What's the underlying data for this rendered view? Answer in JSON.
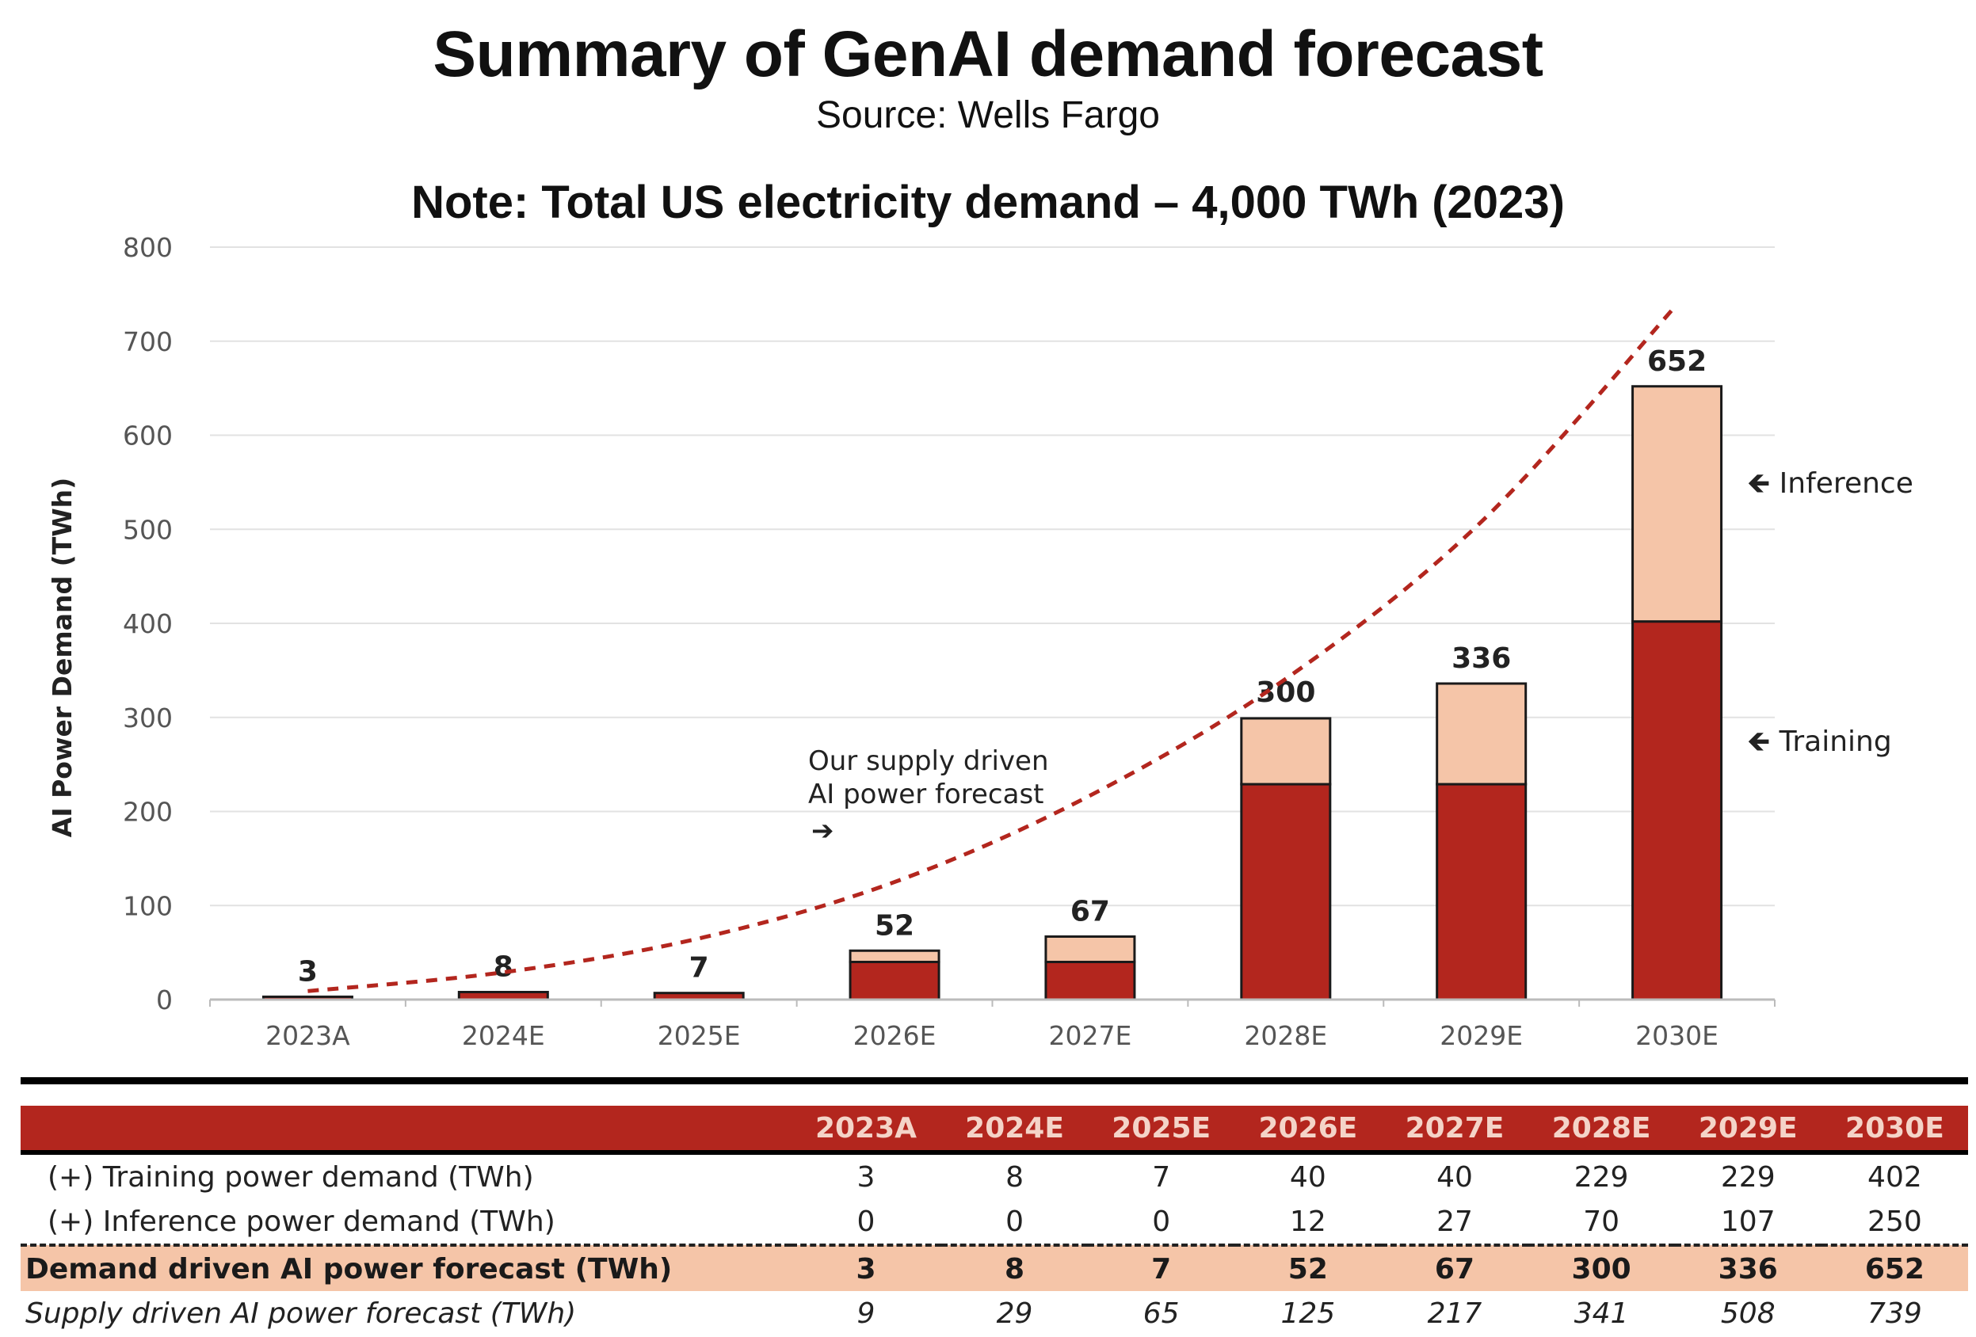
{
  "header": {
    "title": "Summary of GenAI demand forecast",
    "source": "Source: Wells Fargo",
    "note": "Note: Total US electricity demand – 4,000 TWh (2023)"
  },
  "colors": {
    "training": "#b3261e",
    "inference": "#f5c5a8",
    "supply_line": "#b3261e"
  },
  "chart_data": {
    "type": "bar",
    "stacked": true,
    "categories": [
      "2023A",
      "2024E",
      "2025E",
      "2026E",
      "2027E",
      "2028E",
      "2029E",
      "2030E"
    ],
    "series": [
      {
        "name": "Training",
        "values": [
          3,
          8,
          7,
          40,
          40,
          229,
          229,
          402
        ]
      },
      {
        "name": "Inference",
        "values": [
          0,
          0,
          0,
          12,
          27,
          70,
          107,
          250
        ]
      }
    ],
    "totals": [
      3,
      8,
      7,
      52,
      67,
      300,
      336,
      652
    ],
    "total_labels": [
      "3",
      "8",
      "7",
      "52",
      "67",
      "300",
      "336",
      "652"
    ],
    "line_series": {
      "name": "Our supply driven AI power forecast",
      "style": "dashed",
      "values": [
        9,
        29,
        65,
        125,
        217,
        341,
        508,
        739
      ]
    },
    "ylabel": "AI Power Demand (TWh)",
    "xlabel": "",
    "ylim": [
      0,
      800
    ],
    "yticks": [
      0,
      100,
      200,
      300,
      400,
      500,
      600,
      700,
      800
    ],
    "ytick_labels": [
      "0",
      "100",
      "200",
      "300",
      "400",
      "500",
      "600",
      "700",
      "800"
    ],
    "grid": true,
    "annotations": {
      "supply_line1": "Our supply driven",
      "supply_line2": "AI power forecast",
      "supply_arrow": "➔",
      "inference_label": "🡸 Inference",
      "training_label": "🡸 Training"
    }
  },
  "table": {
    "columns": [
      "",
      "2023A",
      "2024E",
      "2025E",
      "2026E",
      "2027E",
      "2028E",
      "2029E",
      "2030E"
    ],
    "rows": {
      "training": {
        "label": "(+) Training power demand (TWh)",
        "values": [
          "3",
          "8",
          "7",
          "40",
          "40",
          "229",
          "229",
          "402"
        ]
      },
      "inference": {
        "label": "(+) Inference power demand (TWh)",
        "values": [
          "0",
          "0",
          "0",
          "12",
          "27",
          "70",
          "107",
          "250"
        ]
      },
      "demand": {
        "label": "Demand driven AI power forecast (TWh)",
        "values": [
          "3",
          "8",
          "7",
          "52",
          "67",
          "300",
          "336",
          "652"
        ]
      },
      "supply": {
        "label": "Supply driven AI power forecast (TWh)",
        "values": [
          "9",
          "29",
          "65",
          "125",
          "217",
          "341",
          "508",
          "739"
        ]
      }
    }
  }
}
